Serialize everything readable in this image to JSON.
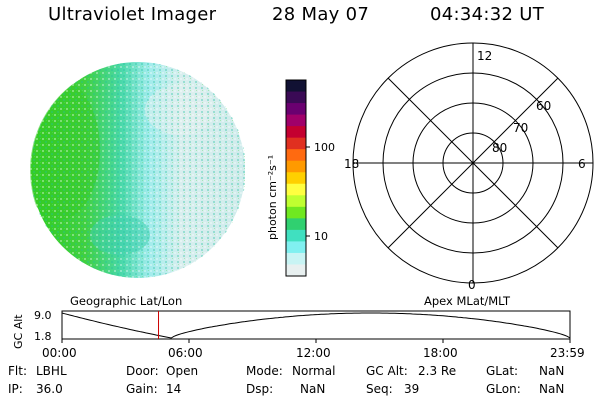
{
  "header": {
    "title": "Ultraviolet Imager",
    "date": "28 May 07",
    "time": "04:34:32 UT"
  },
  "colorbar": {
    "label": "photon cm⁻²s⁻¹",
    "ticks": [
      "100",
      "10"
    ],
    "colors": [
      "#111133",
      "#3a0a55",
      "#6a0070",
      "#a0006a",
      "#c40030",
      "#e03020",
      "#ff6a10",
      "#ff9a00",
      "#ffd000",
      "#ffff40",
      "#c0ff30",
      "#70e820",
      "#30d070",
      "#40e0c0",
      "#80f0f0",
      "#c8f4f4",
      "#e8f0f0"
    ]
  },
  "polar": {
    "labels": {
      "top": "12",
      "bottom": "0",
      "left": "18",
      "right": "6",
      "lat60": "60",
      "lat70": "70",
      "lat80": "80"
    }
  },
  "timeline": {
    "left_title": "Geographic Lat/Lon",
    "right_title": "Apex MLat/MLT",
    "axis_label": "GC Alt",
    "y_top": "9.0",
    "y_bottom": "1.8",
    "x_ticks": [
      "00:00",
      "06:00",
      "12:00",
      "18:00",
      "23:59"
    ],
    "marker_time_fraction": 0.19,
    "marker_color": "#cc0000"
  },
  "status": {
    "flt_label": "Flt:",
    "flt_value": "LBHL",
    "ip_label": "IP:",
    "ip_value": "36.0",
    "door_label": "Door:",
    "door_value": "Open",
    "gain_label": "Gain:",
    "gain_value": "14",
    "mode_label": "Mode:",
    "mode_value": "Normal",
    "dsp_label": "Dsp:",
    "dsp_value": "NaN",
    "gcalt_label": "GC Alt:",
    "gcalt_value": "2.3 Re",
    "seq_label": "Seq:",
    "seq_value": "39",
    "glat_label": "GLat:",
    "glat_value": "NaN",
    "glon_label": "GLon:",
    "glon_value": "NaN"
  }
}
